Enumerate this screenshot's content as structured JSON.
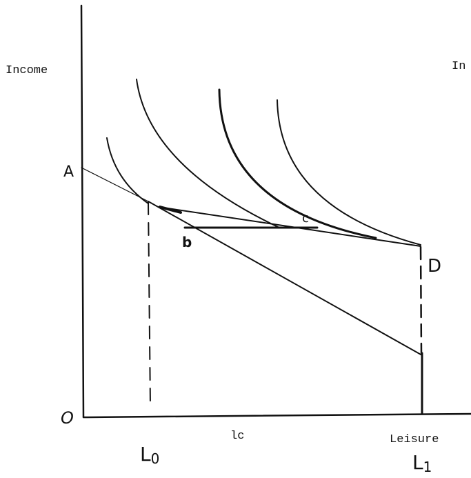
{
  "axes": {
    "y_label": "Income",
    "x_label": "Leisure",
    "cut_label": "In",
    "origin": "O"
  },
  "points": {
    "a": "A",
    "b": "b",
    "c": "c",
    "d": "D"
  },
  "x_marks": {
    "l0": {
      "letter": "L",
      "subscript": "0"
    },
    "lc": "lc",
    "l1": {
      "letter": "L",
      "subscript": "1"
    }
  }
}
